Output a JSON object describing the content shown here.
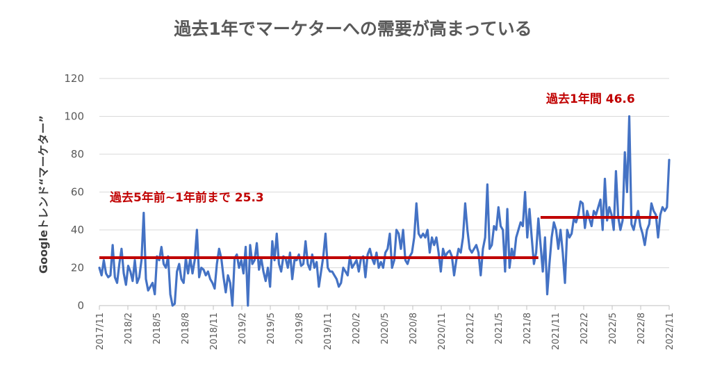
{
  "chart_data": {
    "type": "line",
    "title": "過去1年でマーケターへの需要が高まっている",
    "ylabel": "Googleトレンド“マーケター”",
    "xlabel": "",
    "ylim": [
      0,
      120
    ],
    "yticks": [
      0,
      20,
      40,
      60,
      80,
      100,
      120
    ],
    "grid": true,
    "xtick_labels": [
      "2017/11",
      "2018/2",
      "2018/5",
      "2018/8",
      "2018/11",
      "2019/2",
      "2019/5",
      "2019/8",
      "2019/11",
      "2020/2",
      "2020/5",
      "2020/8",
      "2020/11",
      "2021/2",
      "2021/5",
      "2021/8",
      "2021/11",
      "2022/2",
      "2022/5",
      "2022/8",
      "2022/11"
    ],
    "series": [
      {
        "name": "Googleトレンド“マーケター”",
        "color": "#4472c4",
        "values": [
          20,
          16,
          24,
          17,
          15,
          16,
          32,
          15,
          12,
          22,
          30,
          17,
          11,
          21,
          18,
          13,
          24,
          12,
          15,
          24,
          49,
          14,
          8,
          10,
          12,
          6,
          26,
          24,
          31,
          22,
          20,
          26,
          6,
          0,
          1,
          18,
          22,
          14,
          12,
          25,
          17,
          25,
          17,
          24,
          40,
          15,
          20,
          19,
          16,
          18,
          14,
          12,
          9,
          22,
          30,
          25,
          15,
          7,
          16,
          12,
          0,
          25,
          27,
          20,
          24,
          17,
          31,
          0,
          32,
          22,
          24,
          33,
          19,
          25,
          18,
          13,
          20,
          10,
          34,
          24,
          38,
          22,
          18,
          26,
          25,
          20,
          28,
          14,
          24,
          24,
          27,
          21,
          22,
          34,
          22,
          19,
          27,
          20,
          23,
          10,
          18,
          26,
          38,
          20,
          18,
          18,
          16,
          14,
          10,
          12,
          20,
          18,
          16,
          26,
          20,
          22,
          24,
          18,
          25,
          26,
          15,
          27,
          30,
          25,
          22,
          28,
          20,
          23,
          20,
          28,
          30,
          38,
          20,
          24,
          40,
          38,
          30,
          40,
          24,
          22,
          26,
          28,
          36,
          54,
          38,
          36,
          38,
          36,
          40,
          28,
          36,
          32,
          36,
          28,
          18,
          30,
          26,
          28,
          29,
          26,
          16,
          24,
          30,
          28,
          36,
          54,
          40,
          30,
          28,
          30,
          32,
          28,
          16,
          30,
          36,
          64,
          30,
          32,
          42,
          40,
          52,
          42,
          40,
          18,
          51,
          20,
          30,
          25,
          36,
          40,
          44,
          42,
          60,
          36,
          51,
          36,
          22,
          28,
          46,
          32,
          18,
          36,
          6,
          22,
          36,
          44,
          40,
          30,
          40,
          28,
          12,
          40,
          36,
          38,
          46,
          44,
          48,
          55,
          54,
          41,
          50,
          46,
          42,
          50,
          48,
          52,
          56,
          40,
          67,
          45,
          52,
          48,
          40,
          71,
          47,
          40,
          45,
          81,
          60,
          100,
          43,
          40,
          46,
          50,
          42,
          38,
          32,
          40,
          43,
          54,
          50,
          48,
          36,
          48,
          52,
          50,
          52,
          77
        ]
      }
    ],
    "reference_lines": [
      {
        "label": "過去5年前~1年前まで 25.3",
        "value": 25.3,
        "from_index": 0,
        "to_index": 198,
        "color": "#c00000"
      },
      {
        "label": "過去1年間 46.6",
        "value": 46.6,
        "from_index": 199,
        "to_index": 252,
        "color": "#c00000"
      }
    ]
  }
}
